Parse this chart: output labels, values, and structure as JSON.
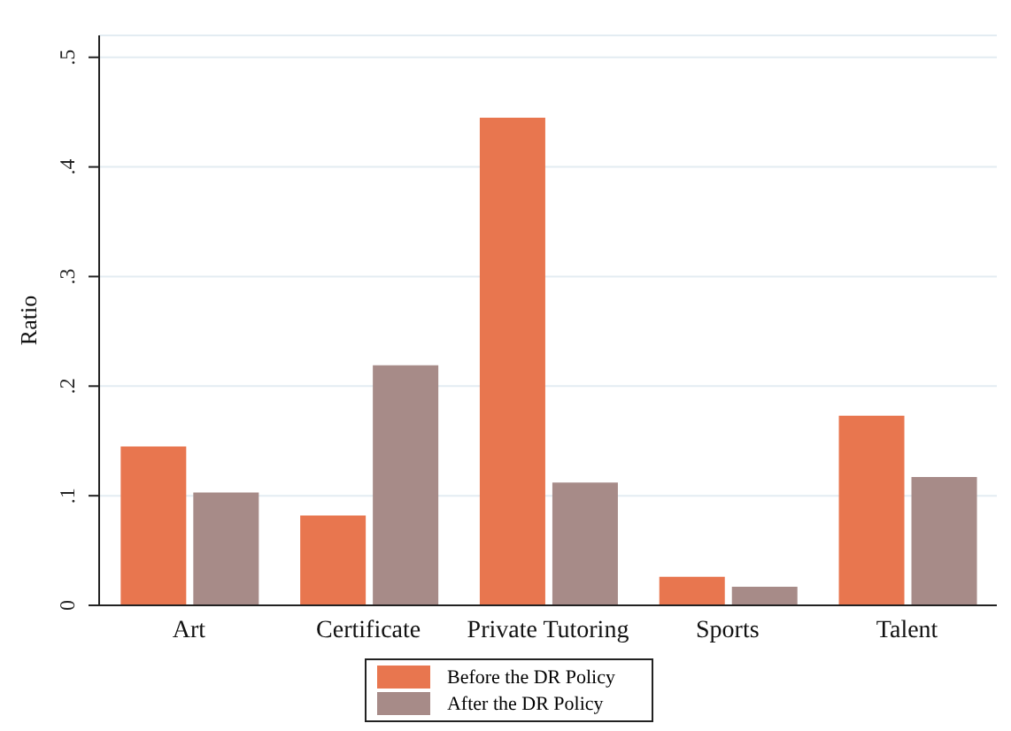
{
  "chart_data": {
    "type": "bar",
    "ylabel": "Ratio",
    "categories": [
      "Art",
      "Certificate",
      "Private Tutoring",
      "Sports",
      "Talent"
    ],
    "series": [
      {
        "name": "Before the DR Policy",
        "color": "#e8764f",
        "values": [
          0.145,
          0.082,
          0.445,
          0.026,
          0.173
        ]
      },
      {
        "name": "After the DR Policy",
        "color": "#a78b88",
        "values": [
          0.103,
          0.219,
          0.112,
          0.017,
          0.117
        ]
      }
    ],
    "ylim": [
      0,
      0.52
    ],
    "yticks": [
      0,
      {
        "value": 0.1,
        "label": ".1"
      },
      {
        "value": 0.2,
        "label": ".2"
      },
      {
        "value": 0.3,
        "label": ".3"
      },
      {
        "value": 0.4,
        "label": ".4"
      },
      {
        "value": 0.5,
        "label": ".5"
      }
    ],
    "grid": "y",
    "legend": "bottom"
  }
}
